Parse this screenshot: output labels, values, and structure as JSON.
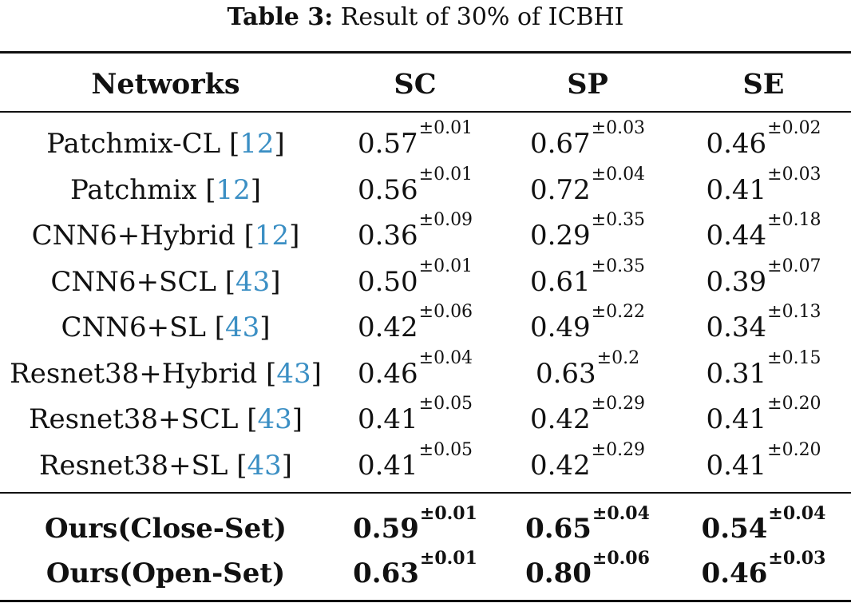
{
  "caption": {
    "label": "Table 3:",
    "text": "Result of 30% of ICBHI"
  },
  "table": {
    "headers": [
      "Networks",
      "SC",
      "SP",
      "SE"
    ],
    "rows": [
      {
        "name": "Patchmix-CL",
        "ref": "12",
        "sc": "0.57",
        "sc_std": "±0.01",
        "sp": "0.67",
        "sp_std": "±0.03",
        "se": "0.46",
        "se_std": "±0.02"
      },
      {
        "name": "Patchmix",
        "ref": "12",
        "sc": "0.56",
        "sc_std": "±0.01",
        "sp": "0.72",
        "sp_std": "±0.04",
        "se": "0.41",
        "se_std": "±0.03"
      },
      {
        "name": "CNN6+Hybrid",
        "ref": "12",
        "sc": "0.36",
        "sc_std": "±0.09",
        "sp": "0.29",
        "sp_std": "±0.35",
        "se": "0.44",
        "se_std": "±0.18"
      },
      {
        "name": "CNN6+SCL",
        "ref": "43",
        "sc": "0.50",
        "sc_std": "±0.01",
        "sp": "0.61",
        "sp_std": "±0.35",
        "se": "0.39",
        "se_std": "±0.07"
      },
      {
        "name": "CNN6+SL",
        "ref": "43",
        "sc": "0.42",
        "sc_std": "±0.06",
        "sp": "0.49",
        "sp_std": "±0.22",
        "se": "0.34",
        "se_std": "±0.13"
      },
      {
        "name": "Resnet38+Hybrid",
        "ref": "43",
        "sc": "0.46",
        "sc_std": "±0.04",
        "sp": "0.63",
        "sp_std": "±0.2",
        "se": "0.31",
        "se_std": "±0.15"
      },
      {
        "name": "Resnet38+SCL",
        "ref": "43",
        "sc": "0.41",
        "sc_std": "±0.05",
        "sp": "0.42",
        "sp_std": "±0.29",
        "se": "0.41",
        "se_std": "±0.20"
      },
      {
        "name": "Resnet38+SL",
        "ref": "43",
        "sc": "0.41",
        "sc_std": "±0.05",
        "sp": "0.42",
        "sp_std": "±0.29",
        "se": "0.41",
        "se_std": "±0.20"
      }
    ],
    "ours": [
      {
        "name": "Ours(Close-Set)",
        "sc": "0.59",
        "sc_std": "±0.01",
        "sp": "0.65",
        "sp_std": "±0.04",
        "se": "0.54",
        "se_std": "±0.04"
      },
      {
        "name": "Ours(Open-Set)",
        "sc": "0.63",
        "sc_std": "±0.01",
        "sp": "0.80",
        "sp_std": "±0.06",
        "se": "0.46",
        "se_std": "±0.03"
      }
    ]
  },
  "colors": {
    "reference_link": "#3b8fc4",
    "text": "#111111"
  }
}
